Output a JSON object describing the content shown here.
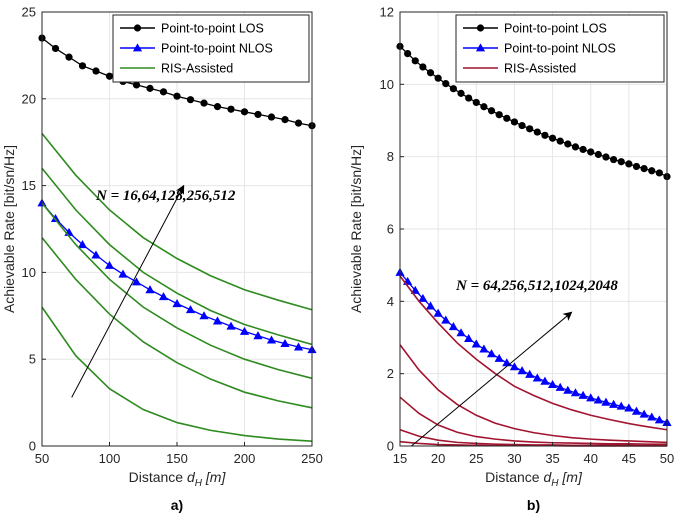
{
  "colors": {
    "los": "#000000",
    "nlos": "#0000ff",
    "ris_a": "#2e8b1f",
    "ris_b": "#a2142f",
    "grid": "#e6e6e6",
    "axis": "#262626"
  },
  "chart_data": [
    {
      "type": "line",
      "panel_label": "a)",
      "xlabel_prefix": "Distance ",
      "xlabel_var": "d",
      "xlabel_sub": "H",
      "xlabel_unit": " [m]",
      "ylabel": "Achievable Rate [bit/sn/Hz]",
      "xlim": [
        50,
        250
      ],
      "ylim": [
        0,
        25
      ],
      "xticks": [
        50,
        100,
        150,
        200,
        250
      ],
      "yticks": [
        0,
        5,
        10,
        15,
        20,
        25
      ],
      "grid": true,
      "legend_position": "top-right",
      "legend": [
        "Point-to-point LOS",
        "Point-to-point NLOS",
        "RIS-Assisted"
      ],
      "annotation": "N = 16,64,128,256,512",
      "annotation_arrow": {
        "from": [
          72,
          2.8
        ],
        "to": [
          155,
          15.0
        ]
      },
      "series": [
        {
          "name": "Point-to-point LOS",
          "marker": "circle",
          "color_key": "los",
          "x": [
            50,
            60,
            70,
            80,
            90,
            100,
            110,
            120,
            130,
            140,
            150,
            160,
            170,
            180,
            190,
            200,
            210,
            220,
            230,
            240,
            250
          ],
          "values": [
            23.5,
            22.9,
            22.4,
            21.9,
            21.6,
            21.3,
            21.0,
            20.8,
            20.6,
            20.4,
            20.15,
            19.95,
            19.75,
            19.55,
            19.4,
            19.25,
            19.1,
            18.95,
            18.8,
            18.6,
            18.45
          ]
        },
        {
          "name": "Point-to-point NLOS",
          "marker": "triangle",
          "color_key": "nlos",
          "x": [
            50,
            60,
            70,
            80,
            90,
            100,
            110,
            120,
            130,
            140,
            150,
            160,
            170,
            180,
            190,
            200,
            210,
            220,
            230,
            240,
            250
          ],
          "values": [
            14.0,
            13.1,
            12.3,
            11.6,
            11.0,
            10.4,
            9.9,
            9.45,
            9.0,
            8.6,
            8.2,
            7.85,
            7.5,
            7.2,
            6.9,
            6.6,
            6.35,
            6.1,
            5.9,
            5.7,
            5.55
          ]
        },
        {
          "name": "RIS-Assisted N=512",
          "marker": "none",
          "color_key": "ris_a",
          "x": [
            50,
            75,
            100,
            125,
            150,
            175,
            200,
            225,
            250
          ],
          "values": [
            18.0,
            15.6,
            13.6,
            12.0,
            10.8,
            9.8,
            9.0,
            8.4,
            7.85
          ]
        },
        {
          "name": "RIS-Assisted N=256",
          "marker": "none",
          "color_key": "ris_a",
          "x": [
            50,
            75,
            100,
            125,
            150,
            175,
            200,
            225,
            250
          ],
          "values": [
            16.0,
            13.6,
            11.6,
            10.0,
            8.8,
            7.8,
            7.0,
            6.4,
            5.85
          ]
        },
        {
          "name": "RIS-Assisted N=128",
          "marker": "none",
          "color_key": "ris_a",
          "x": [
            50,
            75,
            100,
            125,
            150,
            175,
            200,
            225,
            250
          ],
          "values": [
            14.0,
            11.6,
            9.6,
            8.0,
            6.8,
            5.8,
            5.0,
            4.4,
            3.9
          ]
        },
        {
          "name": "RIS-Assisted N=64",
          "marker": "none",
          "color_key": "ris_a",
          "x": [
            50,
            75,
            100,
            125,
            150,
            175,
            200,
            225,
            250
          ],
          "values": [
            12.0,
            9.6,
            7.6,
            6.0,
            4.8,
            3.85,
            3.1,
            2.6,
            2.2
          ]
        },
        {
          "name": "RIS-Assisted N=16",
          "marker": "none",
          "color_key": "ris_a",
          "x": [
            50,
            75,
            100,
            125,
            150,
            175,
            200,
            225,
            250
          ],
          "values": [
            8.0,
            5.2,
            3.3,
            2.1,
            1.35,
            0.9,
            0.6,
            0.4,
            0.28
          ]
        }
      ]
    },
    {
      "type": "line",
      "panel_label": "b)",
      "xlabel_prefix": "Distance ",
      "xlabel_var": "d",
      "xlabel_sub": "H",
      "xlabel_unit": " [m]",
      "ylabel": "Achievable Rate [bit/sn/Hz]",
      "xlim": [
        15,
        50
      ],
      "ylim": [
        0,
        12
      ],
      "xticks": [
        15,
        20,
        25,
        30,
        35,
        40,
        45,
        50
      ],
      "yticks": [
        0,
        2,
        4,
        6,
        8,
        10,
        12
      ],
      "grid": true,
      "legend_position": "top-right",
      "legend": [
        "Point-to-point LOS",
        "Point-to-point NLOS",
        "RIS-Assisted"
      ],
      "annotation": "N = 64,256,512,1024,2048",
      "annotation_arrow": {
        "from": [
          16.5,
          0.0
        ],
        "to": [
          37.5,
          3.7
        ]
      },
      "series": [
        {
          "name": "Point-to-point LOS",
          "marker": "circle",
          "color_key": "los",
          "x": [
            15,
            16,
            17,
            18,
            19,
            20,
            21,
            22,
            23,
            24,
            25,
            26,
            27,
            28,
            29,
            30,
            31,
            32,
            33,
            34,
            35,
            36,
            37,
            38,
            39,
            40,
            41,
            42,
            43,
            44,
            45,
            46,
            47,
            48,
            49,
            50
          ],
          "values": [
            11.05,
            10.85,
            10.65,
            10.48,
            10.32,
            10.17,
            10.02,
            9.88,
            9.75,
            9.62,
            9.5,
            9.38,
            9.27,
            9.16,
            9.06,
            8.96,
            8.86,
            8.77,
            8.68,
            8.59,
            8.51,
            8.43,
            8.35,
            8.27,
            8.2,
            8.13,
            8.06,
            7.99,
            7.92,
            7.86,
            7.8,
            7.73,
            7.67,
            7.61,
            7.55,
            7.45
          ]
        },
        {
          "name": "Point-to-point NLOS",
          "marker": "triangle",
          "color_key": "nlos",
          "x": [
            15,
            16,
            17,
            18,
            19,
            20,
            21,
            22,
            23,
            24,
            25,
            26,
            27,
            28,
            29,
            30,
            31,
            32,
            33,
            34,
            35,
            36,
            37,
            38,
            39,
            40,
            41,
            42,
            43,
            44,
            45,
            46,
            47,
            48,
            49,
            50
          ],
          "values": [
            4.8,
            4.55,
            4.3,
            4.08,
            3.87,
            3.67,
            3.48,
            3.3,
            3.13,
            2.97,
            2.82,
            2.68,
            2.55,
            2.42,
            2.3,
            2.19,
            2.08,
            1.98,
            1.88,
            1.79,
            1.7,
            1.62,
            1.54,
            1.47,
            1.4,
            1.33,
            1.27,
            1.21,
            1.15,
            1.1,
            1.05,
            0.96,
            0.88,
            0.8,
            0.72,
            0.65
          ]
        },
        {
          "name": "RIS-Assisted N=2048",
          "marker": "none",
          "color_key": "ris_b",
          "x": [
            15,
            17.5,
            20,
            22.5,
            25,
            27.5,
            30,
            32.5,
            35,
            37.5,
            40,
            42.5,
            45,
            47.5,
            50
          ],
          "values": [
            4.7,
            4.0,
            3.4,
            2.85,
            2.4,
            2.0,
            1.65,
            1.4,
            1.18,
            1.0,
            0.85,
            0.73,
            0.62,
            0.53,
            0.45
          ]
        },
        {
          "name": "RIS-Assisted N=1024",
          "marker": "none",
          "color_key": "ris_b",
          "x": [
            15,
            17.5,
            20,
            22.5,
            25,
            27.5,
            30,
            32.5,
            35,
            37.5,
            40,
            42.5,
            45,
            47.5,
            50
          ],
          "values": [
            2.8,
            2.1,
            1.55,
            1.15,
            0.85,
            0.63,
            0.48,
            0.37,
            0.29,
            0.23,
            0.19,
            0.16,
            0.14,
            0.12,
            0.1
          ]
        },
        {
          "name": "RIS-Assisted N=512",
          "marker": "none",
          "color_key": "ris_b",
          "x": [
            15,
            17.5,
            20,
            22.5,
            25,
            27.5,
            30,
            32.5,
            35,
            37.5,
            40,
            42.5,
            45,
            47.5,
            50
          ],
          "values": [
            1.35,
            0.9,
            0.58,
            0.38,
            0.26,
            0.19,
            0.14,
            0.11,
            0.09,
            0.08,
            0.07,
            0.06,
            0.06,
            0.05,
            0.05
          ]
        },
        {
          "name": "RIS-Assisted N=256",
          "marker": "none",
          "color_key": "ris_b",
          "x": [
            15,
            17.5,
            20,
            22.5,
            25,
            27.5,
            30,
            32.5,
            35,
            37.5,
            40,
            42.5,
            45,
            47.5,
            50
          ],
          "values": [
            0.45,
            0.27,
            0.16,
            0.1,
            0.07,
            0.05,
            0.04,
            0.03,
            0.03,
            0.02,
            0.02,
            0.02,
            0.02,
            0.01,
            0.01
          ]
        },
        {
          "name": "RIS-Assisted N=64",
          "marker": "none",
          "color_key": "ris_b",
          "x": [
            15,
            17.5,
            20,
            22.5,
            25,
            27.5,
            30,
            32.5,
            35,
            37.5,
            40,
            42.5,
            45,
            47.5,
            50
          ],
          "values": [
            0.12,
            0.07,
            0.04,
            0.03,
            0.02,
            0.01,
            0.01,
            0.01,
            0.01,
            0.0,
            0.0,
            0.0,
            0.0,
            0.0,
            0.0
          ]
        }
      ]
    }
  ]
}
